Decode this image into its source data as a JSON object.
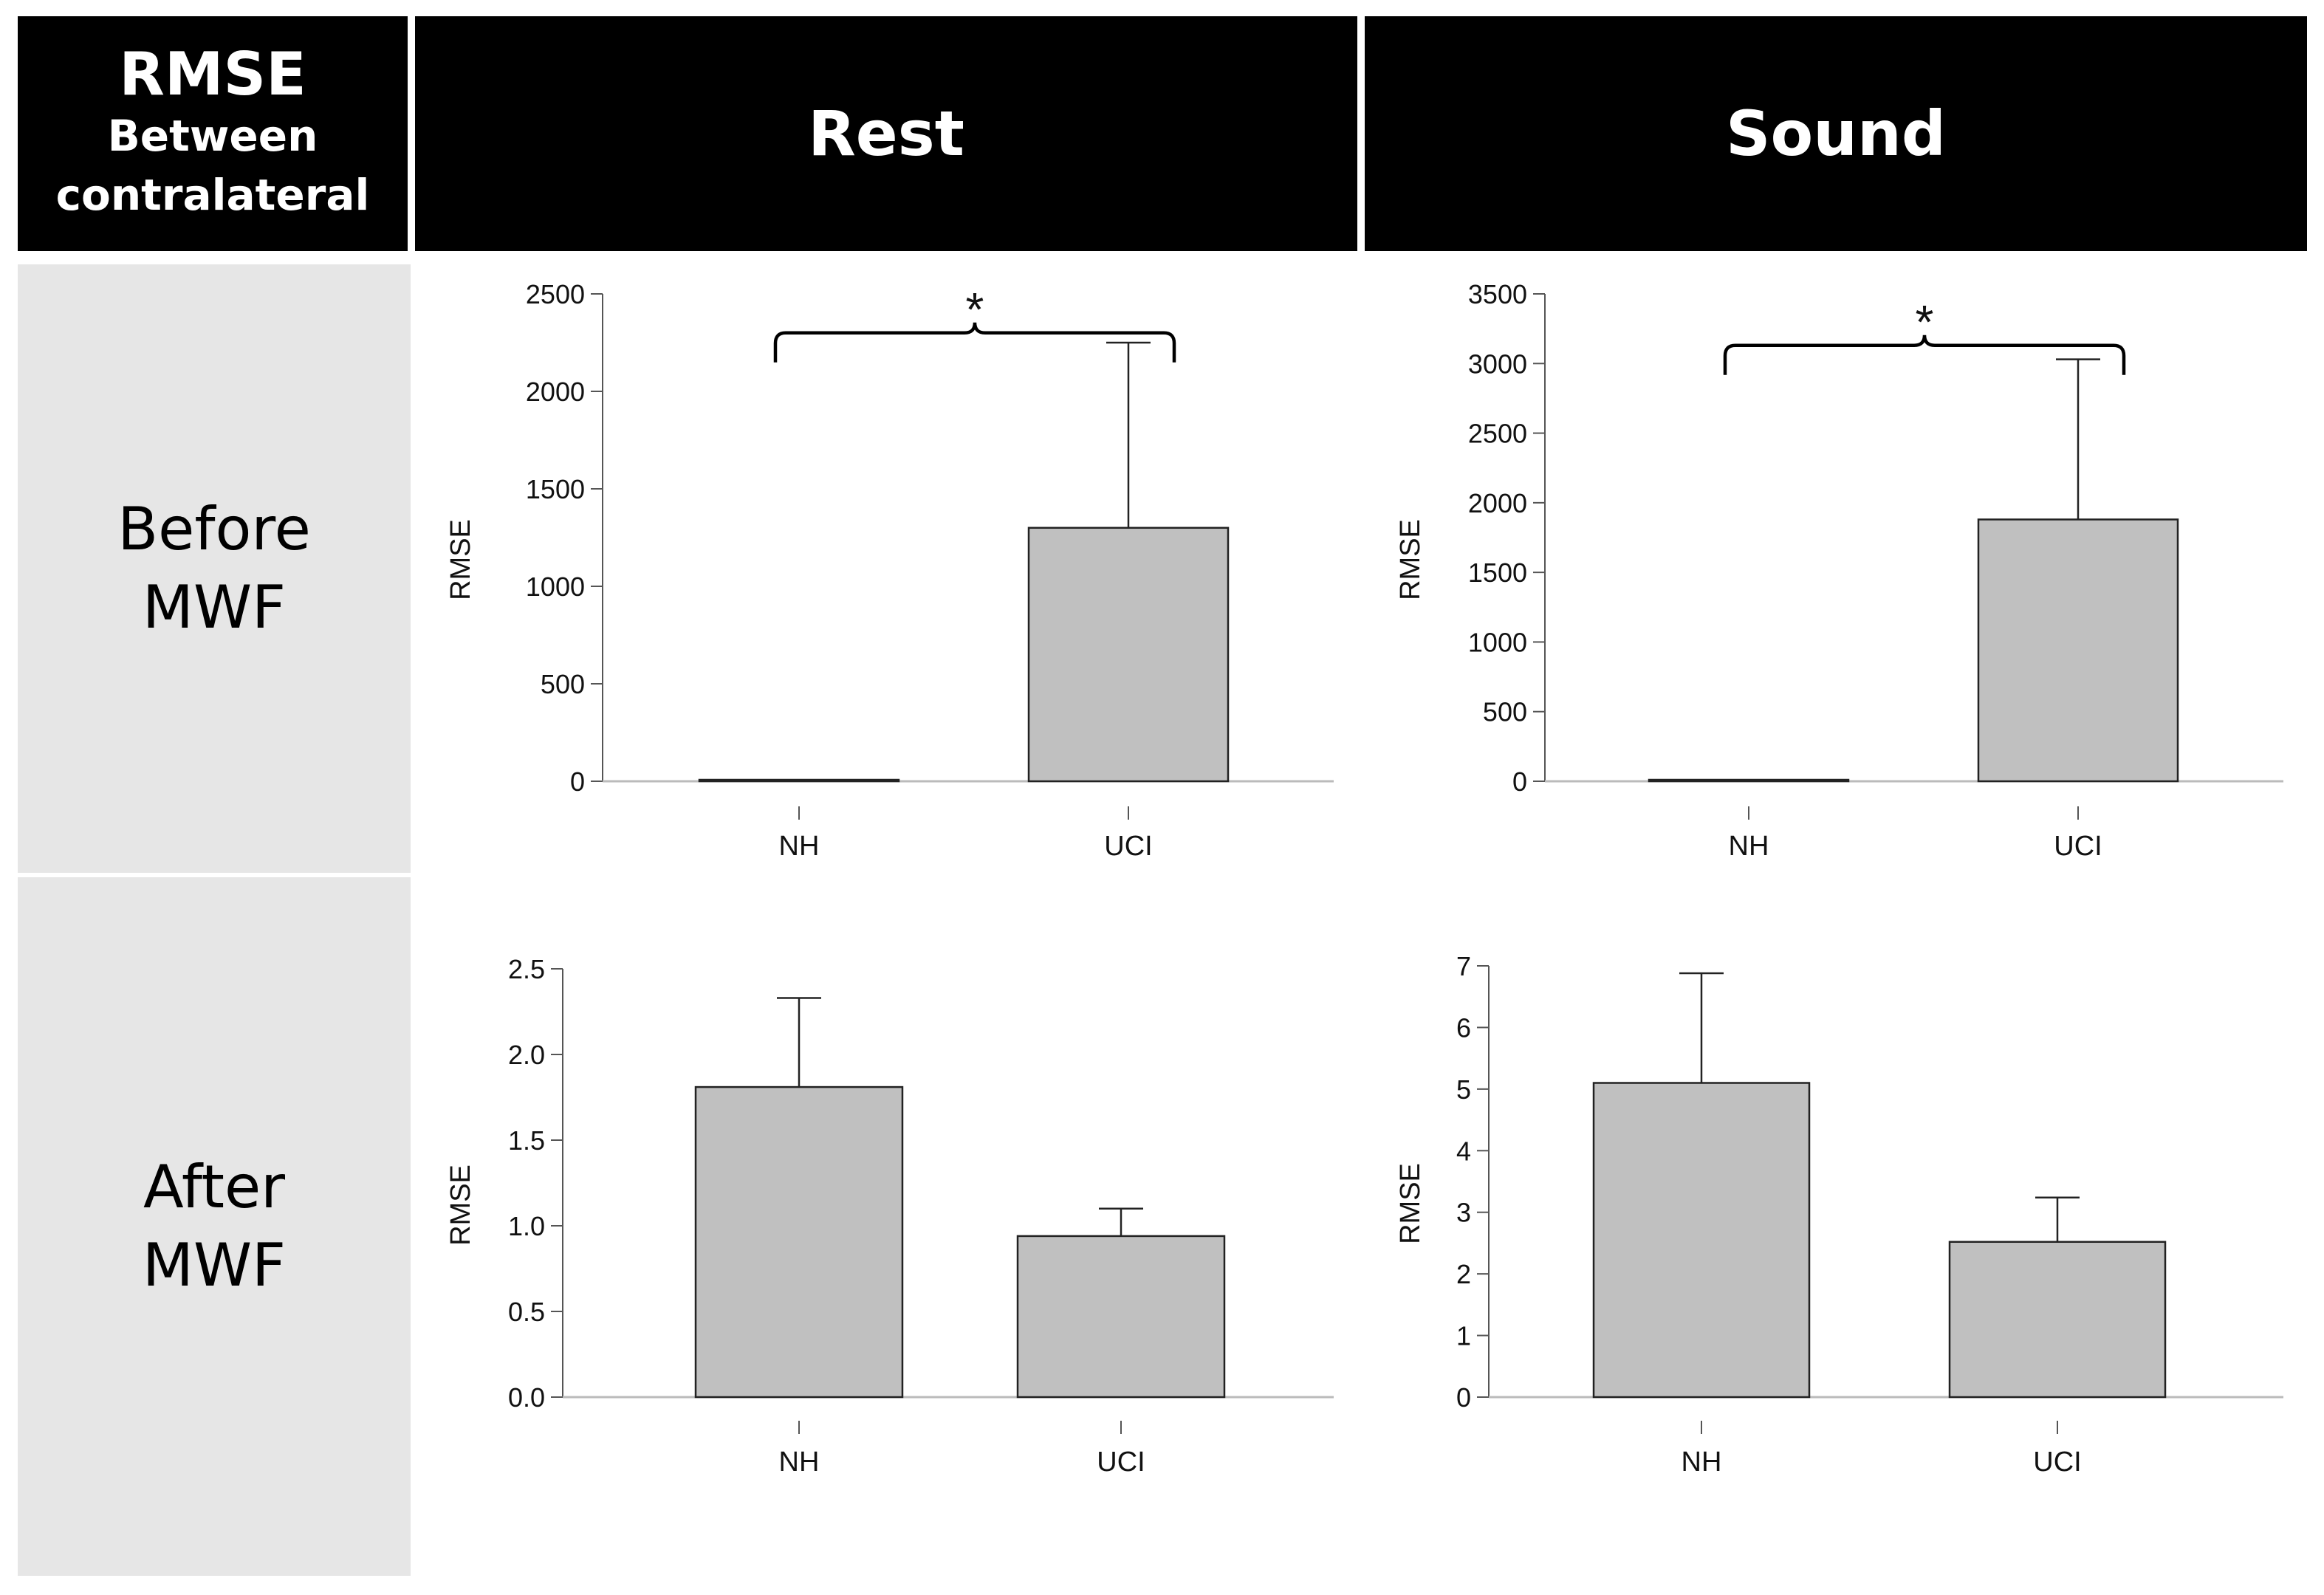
{
  "table": {
    "corner": {
      "line1": "RMSE",
      "line2": "Between",
      "line3": "contralateral"
    },
    "columns": [
      "Rest",
      "Sound"
    ],
    "rows": [
      {
        "line1": "Before",
        "line2": "MWF"
      },
      {
        "line1": "After",
        "line2": "MWF"
      }
    ]
  },
  "colors": {
    "bar_fill": "#c0c0c0",
    "bar_stroke": "#222222",
    "axis": "#555555",
    "header_bg": "#000000",
    "row_bg": "#e6e6e6"
  },
  "chart_data": [
    {
      "id": "before-rest",
      "type": "bar",
      "categories": [
        "NH",
        "UCI"
      ],
      "values": [
        3,
        1300
      ],
      "errors": [
        2,
        950
      ],
      "ylabel": "RMSE",
      "ylim": [
        0,
        2500
      ],
      "yticks": [
        0,
        500,
        1000,
        1500,
        2000,
        2500
      ],
      "ytick_labels": [
        "0",
        "500",
        "1000",
        "1500",
        "2000",
        "2500"
      ],
      "significance": {
        "between": [
          "NH",
          "UCI"
        ],
        "label": "*",
        "level": 2300
      }
    },
    {
      "id": "before-sound",
      "type": "bar",
      "categories": [
        "NH",
        "UCI"
      ],
      "values": [
        5,
        1880
      ],
      "errors": [
        3,
        1150
      ],
      "ylabel": "RMSE",
      "ylim": [
        0,
        3500
      ],
      "yticks": [
        0,
        500,
        1000,
        1500,
        2000,
        2500,
        3000,
        3500
      ],
      "ytick_labels": [
        "0",
        "500",
        "1000",
        "1500",
        "2000",
        "2500",
        "3000",
        "3500"
      ],
      "significance": {
        "between": [
          "NH",
          "UCI"
        ],
        "label": "*",
        "level": 3130
      }
    },
    {
      "id": "after-rest",
      "type": "bar",
      "categories": [
        "NH",
        "UCI"
      ],
      "values": [
        1.81,
        0.94
      ],
      "errors": [
        0.52,
        0.16
      ],
      "ylabel": "RMSE",
      "ylim": [
        0,
        2.5
      ],
      "yticks": [
        0,
        0.5,
        1.0,
        1.5,
        2.0,
        2.5
      ],
      "ytick_labels": [
        "0.0",
        "0.5",
        "1.0",
        "1.5",
        "2.0",
        "2.5"
      ]
    },
    {
      "id": "after-sound",
      "type": "bar",
      "categories": [
        "NH",
        "UCI"
      ],
      "values": [
        5.1,
        2.52
      ],
      "errors": [
        1.78,
        0.72
      ],
      "ylabel": "RMSE",
      "ylim": [
        0,
        7
      ],
      "yticks": [
        0,
        1,
        2,
        3,
        4,
        5,
        6,
        7
      ],
      "ytick_labels": [
        "0",
        "1",
        "2",
        "3",
        "4",
        "5",
        "6",
        "7"
      ]
    }
  ]
}
